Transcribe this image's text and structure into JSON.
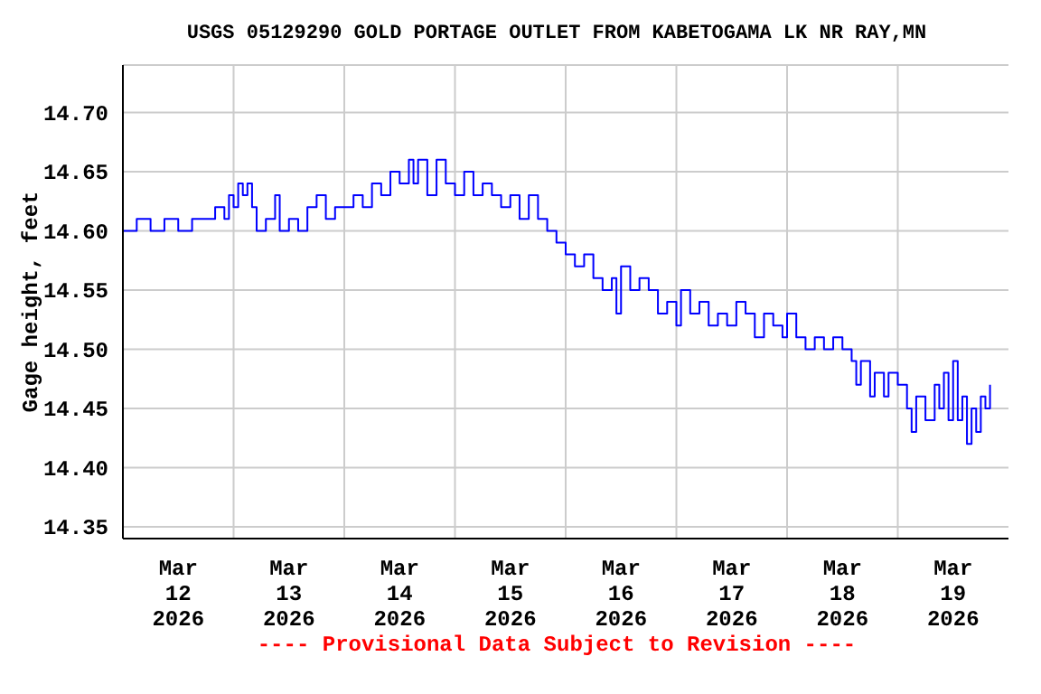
{
  "chart_data": {
    "type": "step",
    "title": "USGS 05129290 GOLD PORTAGE OUTLET FROM KABETOGAMA LK NR RAY,MN",
    "ylabel": "Gage height, feet",
    "annotations": [
      "---- Provisional Data Subject to Revision ----"
    ],
    "x": [
      "2026-03-12T00:00",
      "2026-03-12T03:00",
      "2026-03-12T06:00",
      "2026-03-12T09:00",
      "2026-03-12T12:00",
      "2026-03-12T15:00",
      "2026-03-12T18:00",
      "2026-03-12T20:00",
      "2026-03-12T22:00",
      "2026-03-12T23:00",
      "2026-03-13T00:00",
      "2026-03-13T01:00",
      "2026-03-13T02:00",
      "2026-03-13T03:00",
      "2026-03-13T04:00",
      "2026-03-13T05:00",
      "2026-03-13T07:00",
      "2026-03-13T09:00",
      "2026-03-13T10:00",
      "2026-03-13T12:00",
      "2026-03-13T14:00",
      "2026-03-13T16:00",
      "2026-03-13T18:00",
      "2026-03-13T20:00",
      "2026-03-13T22:00",
      "2026-03-14T00:00",
      "2026-03-14T02:00",
      "2026-03-14T04:00",
      "2026-03-14T06:00",
      "2026-03-14T08:00",
      "2026-03-14T10:00",
      "2026-03-14T12:00",
      "2026-03-14T14:00",
      "2026-03-14T15:00",
      "2026-03-14T16:00",
      "2026-03-14T18:00",
      "2026-03-14T20:00",
      "2026-03-14T22:00",
      "2026-03-15T00:00",
      "2026-03-15T02:00",
      "2026-03-15T04:00",
      "2026-03-15T06:00",
      "2026-03-15T08:00",
      "2026-03-15T10:00",
      "2026-03-15T12:00",
      "2026-03-15T14:00",
      "2026-03-15T16:00",
      "2026-03-15T18:00",
      "2026-03-15T20:00",
      "2026-03-15T22:00",
      "2026-03-16T00:00",
      "2026-03-16T02:00",
      "2026-03-16T04:00",
      "2026-03-16T06:00",
      "2026-03-16T08:00",
      "2026-03-16T10:00",
      "2026-03-16T11:00",
      "2026-03-16T12:00",
      "2026-03-16T14:00",
      "2026-03-16T16:00",
      "2026-03-16T18:00",
      "2026-03-16T20:00",
      "2026-03-16T22:00",
      "2026-03-17T00:00",
      "2026-03-17T01:00",
      "2026-03-17T03:00",
      "2026-03-17T05:00",
      "2026-03-17T07:00",
      "2026-03-17T09:00",
      "2026-03-17T11:00",
      "2026-03-17T13:00",
      "2026-03-17T15:00",
      "2026-03-17T17:00",
      "2026-03-17T19:00",
      "2026-03-17T21:00",
      "2026-03-17T23:00",
      "2026-03-18T00:00",
      "2026-03-18T02:00",
      "2026-03-18T04:00",
      "2026-03-18T06:00",
      "2026-03-18T08:00",
      "2026-03-18T10:00",
      "2026-03-18T12:00",
      "2026-03-18T14:00",
      "2026-03-18T15:00",
      "2026-03-18T16:00",
      "2026-03-18T18:00",
      "2026-03-18T19:00",
      "2026-03-18T21:00",
      "2026-03-18T22:00",
      "2026-03-19T00:00",
      "2026-03-19T02:00",
      "2026-03-19T03:00",
      "2026-03-19T04:00",
      "2026-03-19T06:00",
      "2026-03-19T08:00",
      "2026-03-19T09:00",
      "2026-03-19T10:00",
      "2026-03-19T11:00",
      "2026-03-19T12:00",
      "2026-03-19T13:00",
      "2026-03-19T14:00",
      "2026-03-19T15:00",
      "2026-03-19T16:00",
      "2026-03-19T17:00",
      "2026-03-19T18:00",
      "2026-03-19T19:00",
      "2026-03-19T20:00"
    ],
    "series": [
      {
        "color": "#0000ff",
        "values": [
          14.6,
          14.61,
          14.6,
          14.61,
          14.6,
          14.61,
          14.61,
          14.62,
          14.61,
          14.63,
          14.62,
          14.64,
          14.63,
          14.64,
          14.62,
          14.6,
          14.61,
          14.63,
          14.6,
          14.61,
          14.6,
          14.62,
          14.63,
          14.61,
          14.62,
          14.62,
          14.63,
          14.62,
          14.64,
          14.63,
          14.65,
          14.64,
          14.66,
          14.64,
          14.66,
          14.63,
          14.66,
          14.64,
          14.63,
          14.65,
          14.63,
          14.64,
          14.63,
          14.62,
          14.63,
          14.61,
          14.63,
          14.61,
          14.6,
          14.59,
          14.58,
          14.57,
          14.58,
          14.56,
          14.55,
          14.56,
          14.53,
          14.57,
          14.55,
          14.56,
          14.55,
          14.53,
          14.54,
          14.52,
          14.55,
          14.53,
          14.54,
          14.52,
          14.53,
          14.52,
          14.54,
          14.53,
          14.51,
          14.53,
          14.52,
          14.51,
          14.53,
          14.51,
          14.5,
          14.51,
          14.5,
          14.51,
          14.5,
          14.49,
          14.47,
          14.49,
          14.46,
          14.48,
          14.46,
          14.48,
          14.47,
          14.45,
          14.43,
          14.46,
          14.44,
          14.47,
          14.45,
          14.48,
          14.44,
          14.49,
          14.44,
          14.46,
          14.42,
          14.45,
          14.43,
          14.46,
          14.45,
          14.47
        ]
      }
    ],
    "xlim": [
      "2026-03-12T00:00",
      "2026-03-20T00:00"
    ],
    "xticks": [
      {
        "value": "2026-03-12T12:00",
        "label": "Mar\n12\n2026"
      },
      {
        "value": "2026-03-13T00:00",
        "label": null
      },
      {
        "value": "2026-03-13T12:00",
        "label": "Mar\n13\n2026"
      },
      {
        "value": "2026-03-14T00:00",
        "label": null
      },
      {
        "value": "2026-03-14T12:00",
        "label": "Mar\n14\n2026"
      },
      {
        "value": "2026-03-15T00:00",
        "label": null
      },
      {
        "value": "2026-03-15T12:00",
        "label": "Mar\n15\n2026"
      },
      {
        "value": "2026-03-16T00:00",
        "label": null
      },
      {
        "value": "2026-03-16T12:00",
        "label": "Mar\n16\n2026"
      },
      {
        "value": "2026-03-17T00:00",
        "label": null
      },
      {
        "value": "2026-03-17T12:00",
        "label": "Mar\n17\n2026"
      },
      {
        "value": "2026-03-18T00:00",
        "label": null
      },
      {
        "value": "2026-03-18T12:00",
        "label": "Mar\n18\n2026"
      },
      {
        "value": "2026-03-19T00:00",
        "label": null
      },
      {
        "value": "2026-03-19T12:00",
        "label": "Mar\n19\n2026"
      }
    ],
    "ylim": [
      14.34,
      14.74
    ],
    "yticks": [
      {
        "value": 14.35,
        "label": "14.35"
      },
      {
        "value": 14.4,
        "label": "14.40"
      },
      {
        "value": 14.45,
        "label": "14.45"
      },
      {
        "value": 14.5,
        "label": "14.50"
      },
      {
        "value": 14.55,
        "label": "14.55"
      },
      {
        "value": 14.6,
        "label": "14.60"
      },
      {
        "value": 14.65,
        "label": "14.65"
      },
      {
        "value": 14.7,
        "label": "14.70"
      }
    ],
    "grid": true,
    "legend": false
  }
}
